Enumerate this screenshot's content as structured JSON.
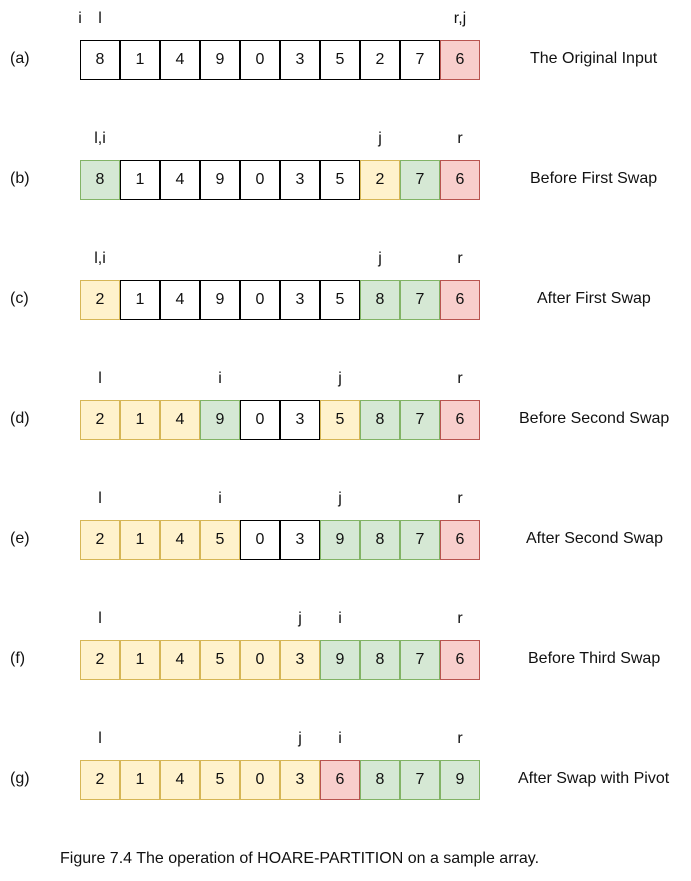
{
  "colors": {
    "neutral": {
      "fill": "#ffffff",
      "stroke": "#000000"
    },
    "yellow": {
      "fill": "#fff2cc",
      "stroke": "#d6b656"
    },
    "green": {
      "fill": "#d5e8d4",
      "stroke": "#82b366"
    },
    "red": {
      "fill": "#f8cecc",
      "stroke": "#b85450"
    }
  },
  "rows": [
    {
      "label": "(a)",
      "caption": "The Original Input",
      "pointers": [
        {
          "text": "i",
          "index": -0.5
        },
        {
          "text": "l",
          "index": 0
        },
        {
          "text": "r,j",
          "index": 9
        }
      ],
      "values": [
        "8",
        "1",
        "4",
        "9",
        "0",
        "3",
        "5",
        "2",
        "7",
        "6"
      ],
      "states": [
        "neutral",
        "neutral",
        "neutral",
        "neutral",
        "neutral",
        "neutral",
        "neutral",
        "neutral",
        "neutral",
        "red"
      ]
    },
    {
      "label": "(b)",
      "caption": "Before First Swap",
      "pointers": [
        {
          "text": "l,i",
          "index": 0
        },
        {
          "text": "j",
          "index": 7
        },
        {
          "text": "r",
          "index": 9
        }
      ],
      "values": [
        "8",
        "1",
        "4",
        "9",
        "0",
        "3",
        "5",
        "2",
        "7",
        "6"
      ],
      "states": [
        "green",
        "neutral",
        "neutral",
        "neutral",
        "neutral",
        "neutral",
        "neutral",
        "yellow",
        "green",
        "red"
      ]
    },
    {
      "label": "(c)",
      "caption": "After First Swap",
      "pointers": [
        {
          "text": "l,i",
          "index": 0
        },
        {
          "text": "j",
          "index": 7
        },
        {
          "text": "r",
          "index": 9
        }
      ],
      "values": [
        "2",
        "1",
        "4",
        "9",
        "0",
        "3",
        "5",
        "8",
        "7",
        "6"
      ],
      "states": [
        "yellow",
        "neutral",
        "neutral",
        "neutral",
        "neutral",
        "neutral",
        "neutral",
        "green",
        "green",
        "red"
      ]
    },
    {
      "label": "(d)",
      "caption": "Before Second Swap",
      "pointers": [
        {
          "text": "l",
          "index": 0
        },
        {
          "text": "i",
          "index": 3
        },
        {
          "text": "j",
          "index": 6
        },
        {
          "text": "r",
          "index": 9
        }
      ],
      "values": [
        "2",
        "1",
        "4",
        "9",
        "0",
        "3",
        "5",
        "8",
        "7",
        "6"
      ],
      "states": [
        "yellow",
        "yellow",
        "yellow",
        "green",
        "neutral",
        "neutral",
        "yellow",
        "green",
        "green",
        "red"
      ]
    },
    {
      "label": "(e)",
      "caption": "After Second Swap",
      "pointers": [
        {
          "text": "l",
          "index": 0
        },
        {
          "text": "i",
          "index": 3
        },
        {
          "text": "j",
          "index": 6
        },
        {
          "text": "r",
          "index": 9
        }
      ],
      "values": [
        "2",
        "1",
        "4",
        "5",
        "0",
        "3",
        "9",
        "8",
        "7",
        "6"
      ],
      "states": [
        "yellow",
        "yellow",
        "yellow",
        "yellow",
        "neutral",
        "neutral",
        "green",
        "green",
        "green",
        "red"
      ]
    },
    {
      "label": "(f)",
      "caption": "Before Third Swap",
      "pointers": [
        {
          "text": "l",
          "index": 0
        },
        {
          "text": "j",
          "index": 5
        },
        {
          "text": "i",
          "index": 6
        },
        {
          "text": "r",
          "index": 9
        }
      ],
      "values": [
        "2",
        "1",
        "4",
        "5",
        "0",
        "3",
        "9",
        "8",
        "7",
        "6"
      ],
      "states": [
        "yellow",
        "yellow",
        "yellow",
        "yellow",
        "yellow",
        "yellow",
        "green",
        "green",
        "green",
        "red"
      ]
    },
    {
      "label": "(g)",
      "caption": "After Swap with Pivot",
      "pointers": [
        {
          "text": "l",
          "index": 0
        },
        {
          "text": "j",
          "index": 5
        },
        {
          "text": "i",
          "index": 6
        },
        {
          "text": "r",
          "index": 9
        }
      ],
      "values": [
        "2",
        "1",
        "4",
        "5",
        "0",
        "3",
        "6",
        "8",
        "7",
        "9"
      ],
      "states": [
        "yellow",
        "yellow",
        "yellow",
        "yellow",
        "yellow",
        "yellow",
        "red",
        "green",
        "green",
        "green"
      ]
    }
  ],
  "figure_caption": "Figure 7.4 The operation of HOARE-PARTITION on a sample array."
}
